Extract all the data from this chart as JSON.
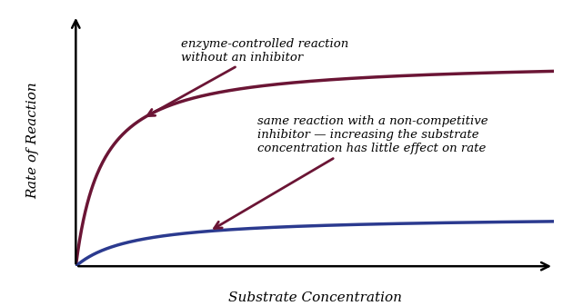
{
  "xlabel": "Substrate Concentration",
  "ylabel": "Rate of Reaction",
  "background_color": "#ffffff",
  "curve1_color": "#6B1535",
  "curve2_color": "#2B3A8F",
  "curve1_vmax": 0.82,
  "curve1_km": 0.055,
  "curve2_vmax": 0.2,
  "curve2_km": 0.12,
  "annotation1_text": "enzyme-controlled reaction\nwithout an inhibitor",
  "annotation2_text": "same reaction with a non-competitive\ninhibitor — increasing the substrate\nconcentration has little effect on rate",
  "xlim": [
    0,
    1.0
  ],
  "ylim": [
    0,
    1.0
  ],
  "ann1_arrow_color": "#6B1535",
  "ann2_arrow_color": "#6B1535"
}
